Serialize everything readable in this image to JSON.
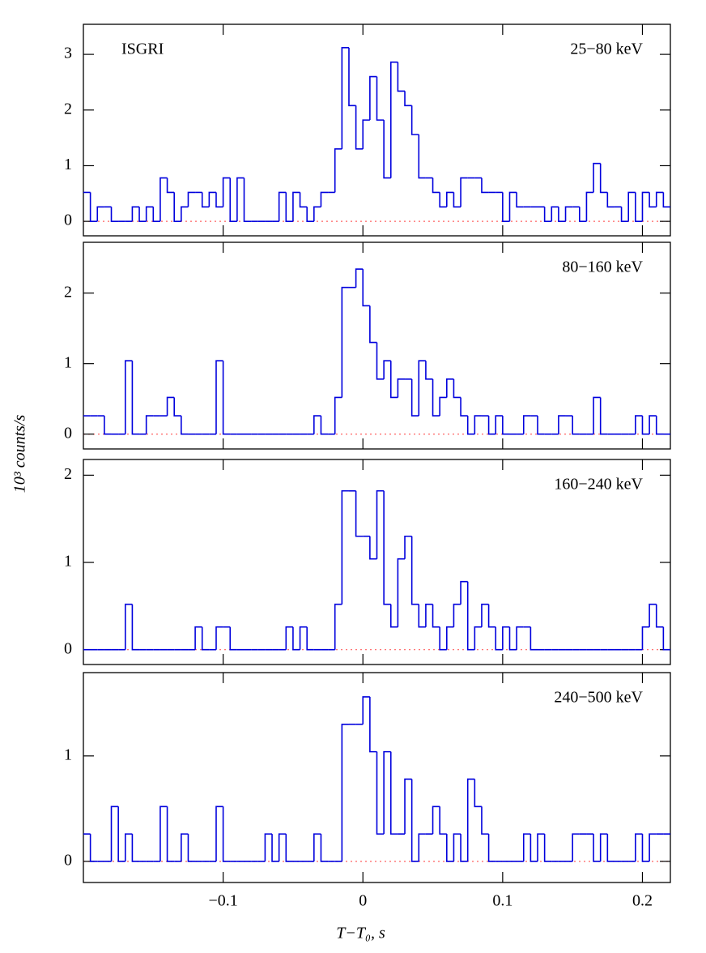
{
  "ylabel": "10³ counts/s",
  "chart_data": [
    {
      "type": "histogram",
      "annotation": "ISGRI",
      "label": "25−80 keV",
      "color": "#0000dd",
      "xlim": [
        -0.2,
        0.22
      ],
      "xticks": [
        -0.1,
        0,
        0.1,
        0.2
      ],
      "ylim": [
        -0.26,
        3.54
      ],
      "yticks": [
        0,
        1,
        2,
        3
      ],
      "bins": [
        -0.2,
        -0.195,
        -0.19,
        -0.185,
        -0.18,
        -0.175,
        -0.17,
        -0.165,
        -0.16,
        -0.155,
        -0.15,
        -0.145,
        -0.14,
        -0.135,
        -0.13,
        -0.125,
        -0.12,
        -0.115,
        -0.11,
        -0.105,
        -0.1,
        -0.095,
        -0.09,
        -0.085,
        -0.08,
        -0.075,
        -0.07,
        -0.065,
        -0.06,
        -0.055,
        -0.05,
        -0.045,
        -0.04,
        -0.035,
        -0.03,
        -0.025,
        -0.02,
        -0.015,
        -0.01,
        -0.005,
        0,
        0.005,
        0.01,
        0.015,
        0.02,
        0.025,
        0.03,
        0.035,
        0.04,
        0.045,
        0.05,
        0.055,
        0.06,
        0.065,
        0.07,
        0.075,
        0.08,
        0.085,
        0.09,
        0.095,
        0.1,
        0.105,
        0.11,
        0.115,
        0.12,
        0.125,
        0.13,
        0.135,
        0.14,
        0.145,
        0.15,
        0.155,
        0.16,
        0.165,
        0.17,
        0.175,
        0.18,
        0.185,
        0.19,
        0.195,
        0.2,
        0.205,
        0.21,
        0.215,
        0.22
      ],
      "values": [
        0.52,
        0,
        0.26,
        0.26,
        0,
        0,
        0,
        0.26,
        0,
        0.26,
        0,
        0.78,
        0.52,
        0,
        0.26,
        0.52,
        0.52,
        0.26,
        0.52,
        0.26,
        0.78,
        0,
        0.78,
        0,
        0,
        0,
        0,
        0,
        0.52,
        0,
        0.52,
        0.26,
        0,
        0.26,
        0.52,
        0.52,
        1.3,
        3.12,
        2.08,
        1.3,
        1.82,
        2.6,
        1.82,
        0.78,
        2.86,
        2.34,
        2.08,
        1.56,
        0.78,
        0.78,
        0.52,
        0.26,
        0.52,
        0.26,
        0.78,
        0.78,
        0.78,
        0.52,
        0.52,
        0.52,
        0,
        0.52,
        0.26,
        0.26,
        0.26,
        0.26,
        0,
        0.26,
        0,
        0.26,
        0.26,
        0,
        0.52,
        1.04,
        0.52,
        0.26,
        0.26,
        0,
        0.52,
        0,
        0.52,
        0.26,
        0.52,
        0.26
      ]
    },
    {
      "type": "histogram",
      "label": "80−160 keV",
      "color": "#0000dd",
      "xlim": [
        -0.2,
        0.22
      ],
      "xticks": [
        -0.1,
        0,
        0.1,
        0.2
      ],
      "ylim": [
        -0.21,
        2.72
      ],
      "yticks": [
        0,
        1,
        2
      ],
      "bins": [
        -0.2,
        -0.195,
        -0.19,
        -0.185,
        -0.18,
        -0.175,
        -0.17,
        -0.165,
        -0.16,
        -0.155,
        -0.15,
        -0.145,
        -0.14,
        -0.135,
        -0.13,
        -0.125,
        -0.12,
        -0.115,
        -0.11,
        -0.105,
        -0.1,
        -0.095,
        -0.09,
        -0.085,
        -0.08,
        -0.075,
        -0.07,
        -0.065,
        -0.06,
        -0.055,
        -0.05,
        -0.045,
        -0.04,
        -0.035,
        -0.03,
        -0.025,
        -0.02,
        -0.015,
        -0.01,
        -0.005,
        0,
        0.005,
        0.01,
        0.015,
        0.02,
        0.025,
        0.03,
        0.035,
        0.04,
        0.045,
        0.05,
        0.055,
        0.06,
        0.065,
        0.07,
        0.075,
        0.08,
        0.085,
        0.09,
        0.095,
        0.1,
        0.105,
        0.11,
        0.115,
        0.12,
        0.125,
        0.13,
        0.135,
        0.14,
        0.145,
        0.15,
        0.155,
        0.16,
        0.165,
        0.17,
        0.175,
        0.18,
        0.185,
        0.19,
        0.195,
        0.2,
        0.205,
        0.21,
        0.215,
        0.22
      ],
      "values": [
        0.26,
        0.26,
        0.26,
        0,
        0,
        0,
        1.04,
        0,
        0,
        0.26,
        0.26,
        0.26,
        0.52,
        0.26,
        0,
        0,
        0,
        0,
        0,
        1.04,
        0,
        0,
        0,
        0,
        0,
        0,
        0,
        0,
        0,
        0,
        0,
        0,
        0,
        0.26,
        0,
        0,
        0.52,
        2.08,
        2.08,
        2.34,
        1.82,
        1.3,
        0.78,
        1.04,
        0.52,
        0.78,
        0.78,
        0.26,
        1.04,
        0.78,
        0.26,
        0.52,
        0.78,
        0.52,
        0.26,
        0,
        0.26,
        0.26,
        0,
        0.26,
        0,
        0,
        0,
        0.26,
        0.26,
        0,
        0,
        0,
        0.26,
        0.26,
        0,
        0,
        0,
        0.52,
        0,
        0,
        0,
        0,
        0,
        0.26,
        0,
        0.26,
        0,
        0
      ]
    },
    {
      "type": "histogram",
      "label": "160−240 keV",
      "color": "#0000dd",
      "xlim": [
        -0.2,
        0.22
      ],
      "xticks": [
        -0.1,
        0,
        0.1,
        0.2
      ],
      "ylim": [
        -0.17,
        2.18
      ],
      "yticks": [
        0,
        1,
        2
      ],
      "bins": [
        -0.2,
        -0.195,
        -0.19,
        -0.185,
        -0.18,
        -0.175,
        -0.17,
        -0.165,
        -0.16,
        -0.155,
        -0.15,
        -0.145,
        -0.14,
        -0.135,
        -0.13,
        -0.125,
        -0.12,
        -0.115,
        -0.11,
        -0.105,
        -0.1,
        -0.095,
        -0.09,
        -0.085,
        -0.08,
        -0.075,
        -0.07,
        -0.065,
        -0.06,
        -0.055,
        -0.05,
        -0.045,
        -0.04,
        -0.035,
        -0.03,
        -0.025,
        -0.02,
        -0.015,
        -0.01,
        -0.005,
        0,
        0.005,
        0.01,
        0.015,
        0.02,
        0.025,
        0.03,
        0.035,
        0.04,
        0.045,
        0.05,
        0.055,
        0.06,
        0.065,
        0.07,
        0.075,
        0.08,
        0.085,
        0.09,
        0.095,
        0.1,
        0.105,
        0.11,
        0.115,
        0.12,
        0.125,
        0.13,
        0.135,
        0.14,
        0.145,
        0.15,
        0.155,
        0.16,
        0.165,
        0.17,
        0.175,
        0.18,
        0.185,
        0.19,
        0.195,
        0.2,
        0.205,
        0.21,
        0.215,
        0.22
      ],
      "values": [
        0,
        0,
        0,
        0,
        0,
        0,
        0.52,
        0,
        0,
        0,
        0,
        0,
        0,
        0,
        0,
        0,
        0.26,
        0,
        0,
        0.26,
        0.26,
        0,
        0,
        0,
        0,
        0,
        0,
        0,
        0,
        0.26,
        0,
        0.26,
        0,
        0,
        0,
        0,
        0.52,
        1.82,
        1.82,
        1.3,
        1.3,
        1.04,
        1.82,
        0.52,
        0.26,
        1.04,
        1.3,
        0.52,
        0.26,
        0.52,
        0.26,
        0,
        0.26,
        0.52,
        0.78,
        0,
        0.26,
        0.52,
        0.26,
        0,
        0.26,
        0,
        0.26,
        0.26,
        0,
        0,
        0,
        0,
        0,
        0,
        0,
        0,
        0,
        0,
        0,
        0,
        0,
        0,
        0,
        0,
        0.26,
        0.52,
        0.26,
        0
      ]
    },
    {
      "type": "histogram",
      "label": "240−500 keV",
      "color": "#0000dd",
      "xlabel": "T−T₀, s",
      "xlim": [
        -0.2,
        0.22
      ],
      "xticks": [
        {
          "value": -0.1,
          "label": "−0.1"
        },
        0,
        0.1,
        0.2
      ],
      "ylim": [
        -0.2,
        1.79
      ],
      "yticks": [
        0,
        1
      ],
      "bins": [
        -0.2,
        -0.195,
        -0.19,
        -0.185,
        -0.18,
        -0.175,
        -0.17,
        -0.165,
        -0.16,
        -0.155,
        -0.15,
        -0.145,
        -0.14,
        -0.135,
        -0.13,
        -0.125,
        -0.12,
        -0.115,
        -0.11,
        -0.105,
        -0.1,
        -0.095,
        -0.09,
        -0.085,
        -0.08,
        -0.075,
        -0.07,
        -0.065,
        -0.06,
        -0.055,
        -0.05,
        -0.045,
        -0.04,
        -0.035,
        -0.03,
        -0.025,
        -0.02,
        -0.015,
        -0.01,
        -0.005,
        0,
        0.005,
        0.01,
        0.015,
        0.02,
        0.025,
        0.03,
        0.035,
        0.04,
        0.045,
        0.05,
        0.055,
        0.06,
        0.065,
        0.07,
        0.075,
        0.08,
        0.085,
        0.09,
        0.095,
        0.1,
        0.105,
        0.11,
        0.115,
        0.12,
        0.125,
        0.13,
        0.135,
        0.14,
        0.145,
        0.15,
        0.155,
        0.16,
        0.165,
        0.17,
        0.175,
        0.18,
        0.185,
        0.19,
        0.195,
        0.2,
        0.205,
        0.21,
        0.215,
        0.22
      ],
      "values": [
        0.26,
        0,
        0,
        0,
        0.52,
        0,
        0.26,
        0,
        0,
        0,
        0,
        0.52,
        0,
        0,
        0.26,
        0,
        0,
        0,
        0,
        0.52,
        0,
        0,
        0,
        0,
        0,
        0,
        0.26,
        0,
        0.26,
        0,
        0,
        0,
        0,
        0.26,
        0,
        0,
        0,
        1.3,
        1.3,
        1.3,
        1.56,
        1.04,
        0.26,
        1.04,
        0.26,
        0.26,
        0.78,
        0,
        0.26,
        0.26,
        0.52,
        0.26,
        0,
        0.26,
        0,
        0.78,
        0.52,
        0.26,
        0,
        0,
        0,
        0,
        0,
        0.26,
        0,
        0.26,
        0,
        0,
        0,
        0,
        0.26,
        0.26,
        0.26,
        0,
        0.26,
        0,
        0,
        0,
        0,
        0.26,
        0,
        0.26,
        0.26,
        0.26
      ]
    }
  ]
}
